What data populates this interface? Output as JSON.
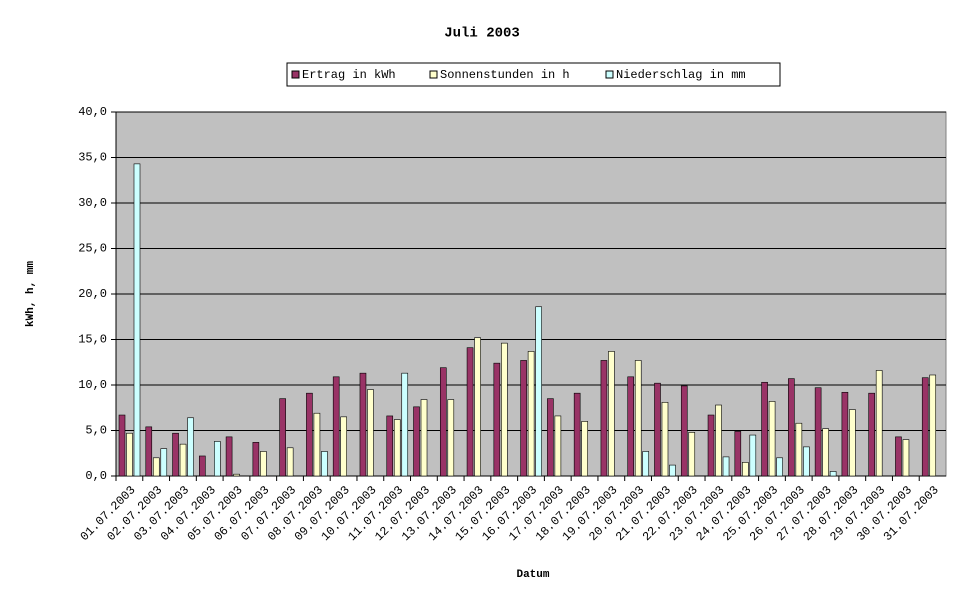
{
  "chart_data": {
    "type": "bar",
    "title": "Juli 2003",
    "x_label": "Datum",
    "y_label": "kWh, h, mm",
    "categories": [
      "01.07.2003",
      "02.07.2003",
      "03.07.2003",
      "04.07.2003",
      "05.07.2003",
      "06.07.2003",
      "07.07.2003",
      "08.07.2003",
      "09.07.2003",
      "10.07.2003",
      "11.07.2003",
      "12.07.2003",
      "13.07.2003",
      "14.07.2003",
      "15.07.2003",
      "16.07.2003",
      "17.07.2003",
      "18.07.2003",
      "19.07.2003",
      "20.07.2003",
      "21.07.2003",
      "22.07.2003",
      "23.07.2003",
      "24.07.2003",
      "25.07.2003",
      "26.07.2003",
      "27.07.2003",
      "28.07.2003",
      "29.07.2003",
      "30.07.2003",
      "31.07.2003"
    ],
    "series": [
      {
        "name": "Ertrag in kWh",
        "color": "#993366",
        "values": [
          6.7,
          5.4,
          4.7,
          2.2,
          4.3,
          3.7,
          8.5,
          9.1,
          10.9,
          11.3,
          6.6,
          7.6,
          11.9,
          14.1,
          12.4,
          12.7,
          8.5,
          9.1,
          12.7,
          10.9,
          10.2,
          9.9,
          6.7,
          4.9,
          10.3,
          10.7,
          9.7,
          9.2,
          9.1,
          4.3,
          10.8
        ]
      },
      {
        "name": "Sonnenstunden in h",
        "color": "#ffffcc",
        "values": [
          4.7,
          2.0,
          3.5,
          0,
          0.2,
          2.7,
          3.1,
          6.9,
          6.5,
          9.5,
          6.2,
          8.4,
          8.4,
          15.2,
          14.6,
          13.7,
          6.6,
          6.0,
          13.7,
          12.7,
          8.1,
          4.8,
          7.8,
          1.5,
          8.2,
          5.8,
          5.2,
          7.3,
          11.6,
          4.0,
          11.1
        ]
      },
      {
        "name": "Niederschlag in mm",
        "color": "#ccffff",
        "values": [
          34.3,
          3.0,
          6.4,
          3.8,
          0,
          0,
          0,
          2.7,
          0,
          0,
          11.3,
          0,
          0,
          0,
          0,
          18.6,
          0,
          0,
          0,
          2.7,
          1.2,
          0,
          2.1,
          4.5,
          2.0,
          3.2,
          0.5,
          0,
          0,
          0,
          0
        ]
      }
    ],
    "ylim": [
      0,
      40
    ],
    "yticks": [
      {
        "value": 0,
        "label": "0,0"
      },
      {
        "value": 5,
        "label": "5,0"
      },
      {
        "value": 10,
        "label": "10,0"
      },
      {
        "value": 15,
        "label": "15,0"
      },
      {
        "value": 20,
        "label": "20,0"
      },
      {
        "value": 25,
        "label": "25,0"
      },
      {
        "value": 30,
        "label": "30,0"
      },
      {
        "value": 35,
        "label": "35,0"
      },
      {
        "value": 40,
        "label": "40,0"
      }
    ],
    "grid": true,
    "plot_background": "#c0c0c0",
    "legend": "top"
  }
}
